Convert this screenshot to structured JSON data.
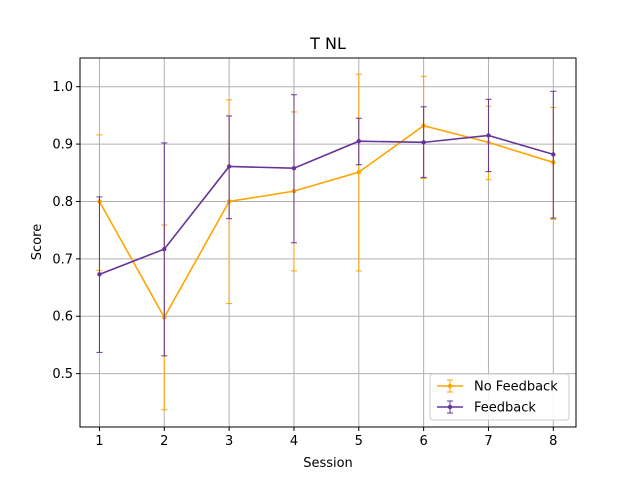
{
  "chart_data": {
    "type": "line",
    "title": "T NL",
    "xlabel": "Session",
    "ylabel": "Score",
    "x": [
      1,
      2,
      3,
      4,
      5,
      6,
      7,
      8
    ],
    "xlim": [
      0.7,
      8.35
    ],
    "ylim": [
      0.407,
      1.05
    ],
    "yticks": [
      0.5,
      0.6,
      0.7,
      0.8,
      0.9,
      1.0
    ],
    "ytick_labels": [
      "0.5",
      "0.6",
      "0.7",
      "0.8",
      "0.9",
      "1.0"
    ],
    "xtick_labels": [
      "1",
      "2",
      "3",
      "4",
      "5",
      "6",
      "7",
      "8"
    ],
    "grid": true,
    "legend_position": "lower right",
    "series": [
      {
        "name": "No Feedback",
        "color": "#ffa500",
        "values": [
          0.8,
          0.598,
          0.8,
          0.818,
          0.851,
          0.932,
          0.903,
          0.868
        ],
        "err_low": [
          0.68,
          0.437,
          0.622,
          0.679,
          0.679,
          0.84,
          0.838,
          0.769
        ],
        "err_high": [
          0.916,
          0.759,
          0.977,
          0.956,
          1.022,
          1.018,
          0.966,
          0.964
        ]
      },
      {
        "name": "Feedback",
        "color": "#663399",
        "values": [
          0.673,
          0.717,
          0.861,
          0.858,
          0.905,
          0.903,
          0.915,
          0.882
        ],
        "err_low": [
          0.537,
          0.531,
          0.77,
          0.728,
          0.864,
          0.842,
          0.852,
          0.771
        ],
        "err_high": [
          0.808,
          0.902,
          0.949,
          0.986,
          0.945,
          0.965,
          0.978,
          0.992
        ]
      }
    ]
  }
}
